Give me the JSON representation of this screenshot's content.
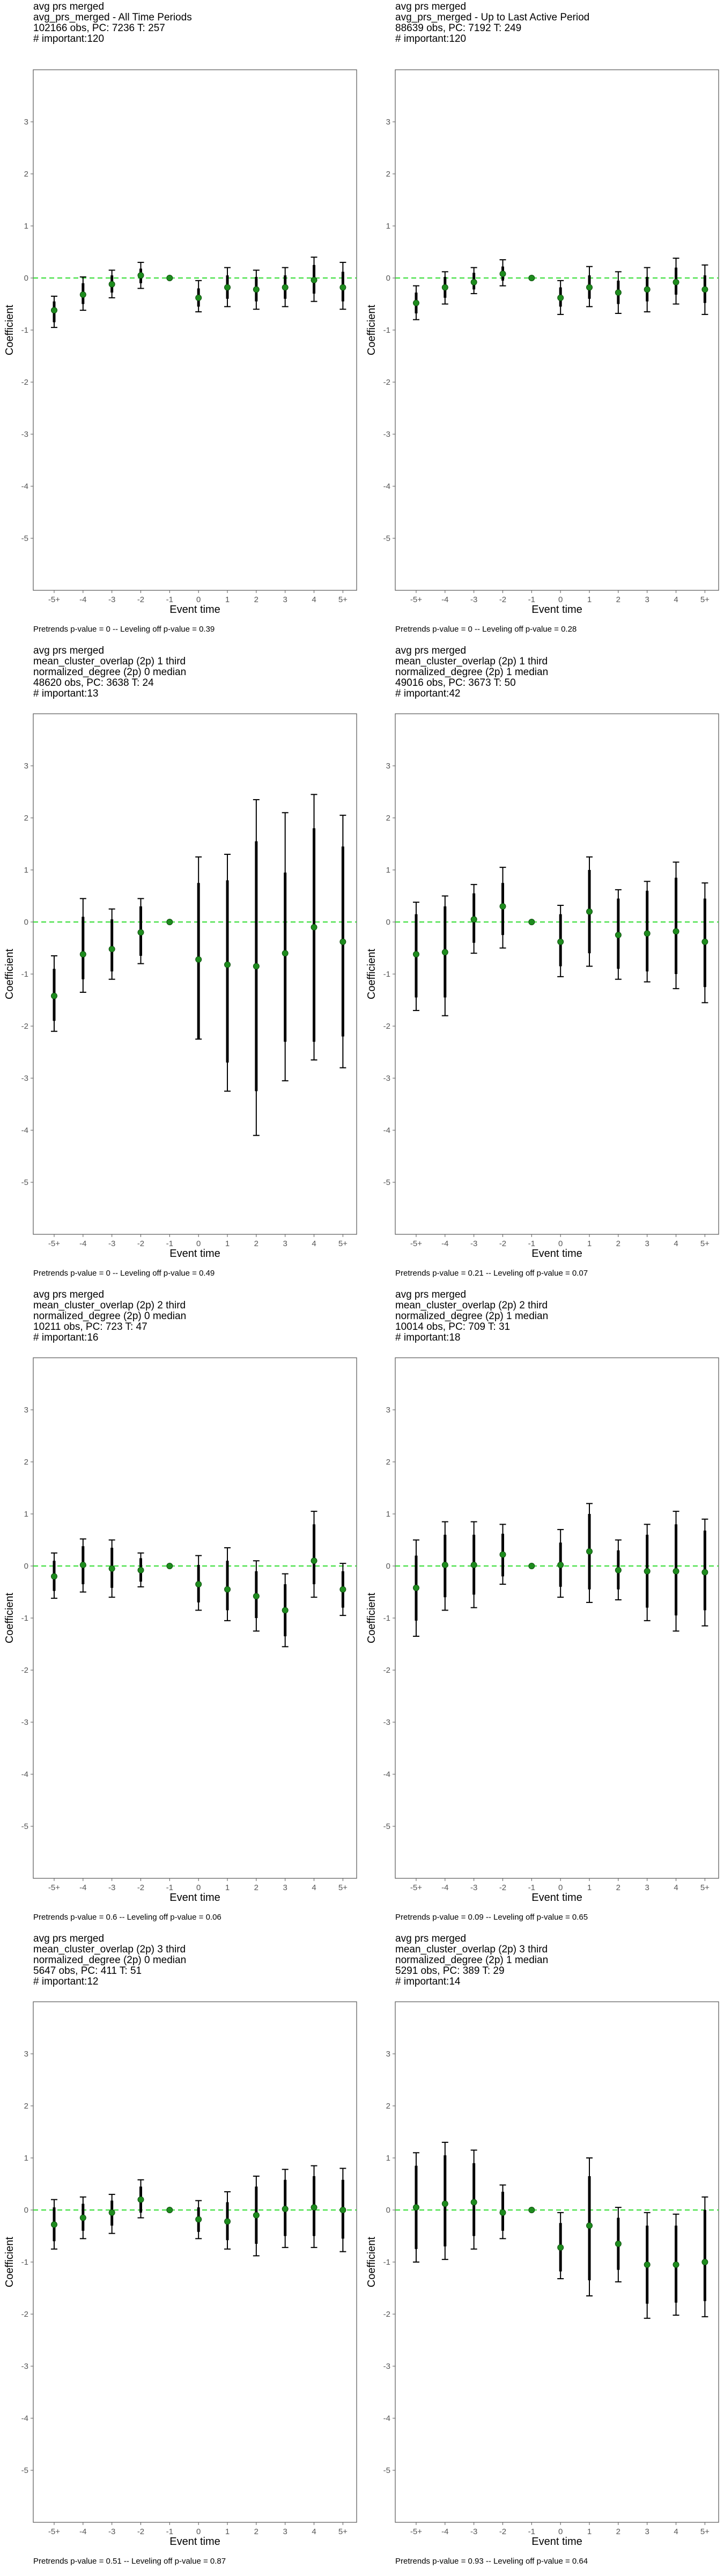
{
  "chart_data": [
    {
      "type": "errorbar",
      "title_lines": [
        "avg prs merged",
        "avg_prs_merged - All Time Periods",
        "102166 obs, PC: 7236 T: 257",
        "# important:120"
      ],
      "xlabel": "Event time",
      "ylabel": "Coefficient",
      "categories": [
        "-5+",
        "-4",
        "-3",
        "-2",
        "-1",
        "0",
        "1",
        "2",
        "3",
        "4",
        "5+"
      ],
      "ylim": [
        -6,
        4
      ],
      "yticks": [
        3,
        2,
        1,
        0,
        -1,
        -2,
        -3,
        -4,
        -5
      ],
      "estimate": [
        -0.62,
        -0.32,
        -0.12,
        0.05,
        0.0,
        -0.38,
        -0.18,
        -0.22,
        -0.18,
        -0.04,
        -0.18
      ],
      "ci_outer": [
        [
          -0.95,
          -0.35
        ],
        [
          -0.62,
          0.02
        ],
        [
          -0.38,
          0.15
        ],
        [
          -0.2,
          0.3
        ],
        [
          0.0,
          0.0
        ],
        [
          -0.65,
          -0.05
        ],
        [
          -0.55,
          0.2
        ],
        [
          -0.6,
          0.15
        ],
        [
          -0.55,
          0.2
        ],
        [
          -0.45,
          0.4
        ],
        [
          -0.6,
          0.3
        ]
      ],
      "ci_inner": [
        [
          -0.85,
          -0.45
        ],
        [
          -0.5,
          -0.1
        ],
        [
          -0.28,
          0.05
        ],
        [
          -0.1,
          0.18
        ],
        [
          0.0,
          0.0
        ],
        [
          -0.55,
          -0.2
        ],
        [
          -0.4,
          0.05
        ],
        [
          -0.45,
          0.02
        ],
        [
          -0.4,
          0.05
        ],
        [
          -0.3,
          0.25
        ],
        [
          -0.45,
          0.12
        ]
      ],
      "footer": "Pretrends p-value = 0 -- Leveling off p-value = 0.39"
    },
    {
      "type": "errorbar",
      "title_lines": [
        "avg prs merged",
        "avg_prs_merged - Up to Last Active Period",
        "88639 obs, PC: 7192 T: 249",
        "# important:120"
      ],
      "xlabel": "Event time",
      "ylabel": "Coefficient",
      "categories": [
        "-5+",
        "-4",
        "-3",
        "-2",
        "-1",
        "0",
        "1",
        "2",
        "3",
        "4",
        "5+"
      ],
      "ylim": [
        -6,
        4
      ],
      "yticks": [
        3,
        2,
        1,
        0,
        -1,
        -2,
        -3,
        -4,
        -5
      ],
      "estimate": [
        -0.48,
        -0.18,
        -0.08,
        0.08,
        0.0,
        -0.38,
        -0.18,
        -0.28,
        -0.22,
        -0.08,
        -0.22
      ],
      "ci_outer": [
        [
          -0.8,
          -0.15
        ],
        [
          -0.5,
          0.12
        ],
        [
          -0.3,
          0.2
        ],
        [
          -0.15,
          0.35
        ],
        [
          0.0,
          0.0
        ],
        [
          -0.7,
          -0.05
        ],
        [
          -0.55,
          0.22
        ],
        [
          -0.68,
          0.12
        ],
        [
          -0.65,
          0.2
        ],
        [
          -0.5,
          0.38
        ],
        [
          -0.7,
          0.25
        ]
      ],
      "ci_inner": [
        [
          -0.68,
          -0.28
        ],
        [
          -0.38,
          0.02
        ],
        [
          -0.22,
          0.1
        ],
        [
          -0.05,
          0.22
        ],
        [
          0.0,
          0.0
        ],
        [
          -0.55,
          -0.18
        ],
        [
          -0.4,
          0.05
        ],
        [
          -0.5,
          -0.05
        ],
        [
          -0.45,
          0.02
        ],
        [
          -0.32,
          0.2
        ],
        [
          -0.48,
          0.05
        ]
      ],
      "footer": "Pretrends p-value = 0 -- Leveling off p-value = 0.28"
    },
    {
      "type": "errorbar",
      "title_lines": [
        "avg prs merged",
        "mean_cluster_overlap (2p) 1 third",
        "normalized_degree (2p) 0 median",
        "48620 obs, PC: 3638 T: 24",
        "# important:13"
      ],
      "xlabel": "Event time",
      "ylabel": "Coefficient",
      "categories": [
        "-5+",
        "-4",
        "-3",
        "-2",
        "-1",
        "0",
        "1",
        "2",
        "3",
        "4",
        "5+"
      ],
      "ylim": [
        -6,
        4
      ],
      "yticks": [
        3,
        2,
        1,
        0,
        -1,
        -2,
        -3,
        -4,
        -5
      ],
      "estimate": [
        -1.42,
        -0.62,
        -0.52,
        -0.2,
        0.0,
        -0.72,
        -0.82,
        -0.85,
        -0.6,
        -0.1,
        -0.38
      ],
      "ci_outer": [
        [
          -2.1,
          -0.65
        ],
        [
          -1.35,
          0.45
        ],
        [
          -1.1,
          0.25
        ],
        [
          -0.8,
          0.45
        ],
        [
          0.0,
          0.0
        ],
        [
          -2.25,
          1.25
        ],
        [
          -3.25,
          1.3
        ],
        [
          -4.1,
          2.35
        ],
        [
          -3.05,
          2.1
        ],
        [
          -2.65,
          2.45
        ],
        [
          -2.8,
          2.05
        ]
      ],
      "ci_inner": [
        [
          -1.9,
          -0.9
        ],
        [
          -1.1,
          0.1
        ],
        [
          -0.95,
          0.05
        ],
        [
          -0.65,
          0.3
        ],
        [
          0.0,
          0.0
        ],
        [
          -2.25,
          0.75
        ],
        [
          -2.7,
          0.8
        ],
        [
          -3.25,
          1.55
        ],
        [
          -2.3,
          0.95
        ],
        [
          -2.3,
          1.8
        ],
        [
          -2.2,
          1.45
        ]
      ],
      "footer": "Pretrends p-value = 0 -- Leveling off p-value = 0.49"
    },
    {
      "type": "errorbar",
      "title_lines": [
        "avg prs merged",
        "mean_cluster_overlap (2p) 1 third",
        "normalized_degree (2p) 1 median",
        "49016 obs, PC: 3673 T: 50",
        "# important:42"
      ],
      "xlabel": "Event time",
      "ylabel": "Coefficient",
      "categories": [
        "-5+",
        "-4",
        "-3",
        "-2",
        "-1",
        "0",
        "1",
        "2",
        "3",
        "4",
        "5+"
      ],
      "ylim": [
        -6,
        4
      ],
      "yticks": [
        3,
        2,
        1,
        0,
        -1,
        -2,
        -3,
        -4,
        -5
      ],
      "estimate": [
        -0.62,
        -0.58,
        0.05,
        0.3,
        0.0,
        -0.38,
        0.2,
        -0.25,
        -0.22,
        -0.18,
        -0.38
      ],
      "ci_outer": [
        [
          -1.7,
          0.38
        ],
        [
          -1.8,
          0.5
        ],
        [
          -0.6,
          0.72
        ],
        [
          -0.5,
          1.05
        ],
        [
          0.0,
          0.0
        ],
        [
          -1.05,
          0.32
        ],
        [
          -0.85,
          1.25
        ],
        [
          -1.1,
          0.62
        ],
        [
          -1.15,
          0.78
        ],
        [
          -1.28,
          1.15
        ],
        [
          -1.55,
          0.75
        ]
      ],
      "ci_inner": [
        [
          -1.45,
          0.15
        ],
        [
          -1.45,
          0.3
        ],
        [
          -0.4,
          0.55
        ],
        [
          -0.25,
          0.75
        ],
        [
          0.0,
          0.0
        ],
        [
          -0.85,
          0.15
        ],
        [
          -0.6,
          1.0
        ],
        [
          -0.9,
          0.45
        ],
        [
          -0.95,
          0.6
        ],
        [
          -1.0,
          0.85
        ],
        [
          -1.25,
          0.45
        ]
      ],
      "footer": "Pretrends p-value = 0.21 -- Leveling off p-value = 0.07"
    },
    {
      "type": "errorbar",
      "title_lines": [
        "avg prs merged",
        "mean_cluster_overlap (2p) 2 third",
        "normalized_degree (2p) 0 median",
        "10211 obs, PC: 723 T: 47",
        "# important:16"
      ],
      "xlabel": "Event time",
      "ylabel": "Coefficient",
      "categories": [
        "-5+",
        "-4",
        "-3",
        "-2",
        "-1",
        "0",
        "1",
        "2",
        "3",
        "4",
        "5+"
      ],
      "ylim": [
        -6,
        4
      ],
      "yticks": [
        3,
        2,
        1,
        0,
        -1,
        -2,
        -3,
        -4,
        -5
      ],
      "estimate": [
        -0.2,
        0.02,
        -0.05,
        -0.08,
        0.0,
        -0.35,
        -0.45,
        -0.58,
        -0.85,
        0.1,
        -0.45
      ],
      "ci_outer": [
        [
          -0.62,
          0.25
        ],
        [
          -0.5,
          0.52
        ],
        [
          -0.6,
          0.5
        ],
        [
          -0.4,
          0.25
        ],
        [
          0.0,
          0.0
        ],
        [
          -0.85,
          0.2
        ],
        [
          -1.05,
          0.35
        ],
        [
          -1.25,
          0.1
        ],
        [
          -1.55,
          -0.15
        ],
        [
          -0.6,
          1.05
        ],
        [
          -0.95,
          0.05
        ]
      ],
      "ci_inner": [
        [
          -0.48,
          0.1
        ],
        [
          -0.35,
          0.38
        ],
        [
          -0.42,
          0.35
        ],
        [
          -0.3,
          0.15
        ],
        [
          0.0,
          0.0
        ],
        [
          -0.7,
          0.02
        ],
        [
          -0.85,
          0.1
        ],
        [
          -1.0,
          -0.1
        ],
        [
          -1.35,
          -0.35
        ],
        [
          -0.35,
          0.8
        ],
        [
          -0.8,
          -0.1
        ]
      ],
      "footer": "Pretrends p-value = 0.6 -- Leveling off p-value = 0.06"
    },
    {
      "type": "errorbar",
      "title_lines": [
        "avg prs merged",
        "mean_cluster_overlap (2p) 2 third",
        "normalized_degree (2p) 1 median",
        "10014 obs, PC: 709 T: 31",
        "# important:18"
      ],
      "xlabel": "Event time",
      "ylabel": "Coefficient",
      "categories": [
        "-5+",
        "-4",
        "-3",
        "-2",
        "-1",
        "0",
        "1",
        "2",
        "3",
        "4",
        "5+"
      ],
      "ylim": [
        -6,
        4
      ],
      "yticks": [
        3,
        2,
        1,
        0,
        -1,
        -2,
        -3,
        -4,
        -5
      ],
      "estimate": [
        -0.42,
        0.02,
        0.02,
        0.22,
        0.0,
        0.02,
        0.28,
        -0.08,
        -0.1,
        -0.1,
        -0.12
      ],
      "ci_outer": [
        [
          -1.35,
          0.5
        ],
        [
          -0.85,
          0.85
        ],
        [
          -0.8,
          0.85
        ],
        [
          -0.35,
          0.8
        ],
        [
          0.0,
          0.0
        ],
        [
          -0.6,
          0.7
        ],
        [
          -0.7,
          1.2
        ],
        [
          -0.65,
          0.5
        ],
        [
          -1.05,
          0.8
        ],
        [
          -1.25,
          1.05
        ],
        [
          -1.15,
          0.9
        ]
      ],
      "ci_inner": [
        [
          -1.05,
          0.2
        ],
        [
          -0.6,
          0.6
        ],
        [
          -0.55,
          0.6
        ],
        [
          -0.2,
          0.62
        ],
        [
          0.0,
          0.0
        ],
        [
          -0.4,
          0.45
        ],
        [
          -0.45,
          1.0
        ],
        [
          -0.45,
          0.3
        ],
        [
          -0.8,
          0.6
        ],
        [
          -0.95,
          0.8
        ],
        [
          -0.85,
          0.68
        ]
      ],
      "footer": "Pretrends p-value = 0.09 -- Leveling off p-value = 0.65"
    },
    {
      "type": "errorbar",
      "title_lines": [
        "avg prs merged",
        "mean_cluster_overlap (2p) 3 third",
        "normalized_degree (2p) 0 median",
        "5647 obs, PC: 411 T: 51",
        "# important:12"
      ],
      "xlabel": "Event time",
      "ylabel": "Coefficient",
      "categories": [
        "-5+",
        "-4",
        "-3",
        "-2",
        "-1",
        "0",
        "1",
        "2",
        "3",
        "4",
        "5+"
      ],
      "ylim": [
        -6,
        4
      ],
      "yticks": [
        3,
        2,
        1,
        0,
        -1,
        -2,
        -3,
        -4,
        -5
      ],
      "estimate": [
        -0.28,
        -0.15,
        -0.05,
        0.2,
        0.0,
        -0.18,
        -0.22,
        -0.1,
        0.02,
        0.05,
        0.0
      ],
      "ci_outer": [
        [
          -0.75,
          0.2
        ],
        [
          -0.55,
          0.25
        ],
        [
          -0.45,
          0.3
        ],
        [
          -0.15,
          0.58
        ],
        [
          0.0,
          0.0
        ],
        [
          -0.55,
          0.18
        ],
        [
          -0.75,
          0.35
        ],
        [
          -0.88,
          0.65
        ],
        [
          -0.72,
          0.78
        ],
        [
          -0.72,
          0.85
        ],
        [
          -0.8,
          0.8
        ]
      ],
      "ci_inner": [
        [
          -0.6,
          0.05
        ],
        [
          -0.4,
          0.12
        ],
        [
          -0.3,
          0.18
        ],
        [
          -0.05,
          0.45
        ],
        [
          0.0,
          0.0
        ],
        [
          -0.42,
          0.05
        ],
        [
          -0.58,
          0.15
        ],
        [
          -0.65,
          0.45
        ],
        [
          -0.5,
          0.58
        ],
        [
          -0.5,
          0.65
        ],
        [
          -0.55,
          0.58
        ]
      ],
      "footer": "Pretrends p-value = 0.51 -- Leveling off p-value = 0.87"
    },
    {
      "type": "errorbar",
      "title_lines": [
        "avg prs merged",
        "mean_cluster_overlap (2p) 3 third",
        "normalized_degree (2p) 1 median",
        "5291 obs, PC: 389 T: 29",
        "# important:14"
      ],
      "xlabel": "Event time",
      "ylabel": "Coefficient",
      "categories": [
        "-5+",
        "-4",
        "-3",
        "-2",
        "-1",
        "0",
        "1",
        "2",
        "3",
        "4",
        "5+"
      ],
      "ylim": [
        -6,
        4
      ],
      "yticks": [
        3,
        2,
        1,
        0,
        -1,
        -2,
        -3,
        -4,
        -5
      ],
      "estimate": [
        0.05,
        0.12,
        0.15,
        -0.05,
        0.0,
        -0.72,
        -0.3,
        -0.65,
        -1.05,
        -1.05,
        -1.0
      ],
      "ci_outer": [
        [
          -1.0,
          1.1
        ],
        [
          -0.95,
          1.3
        ],
        [
          -0.75,
          1.15
        ],
        [
          -0.55,
          0.48
        ],
        [
          0.0,
          0.0
        ],
        [
          -1.32,
          -0.05
        ],
        [
          -1.65,
          1.0
        ],
        [
          -1.38,
          0.05
        ],
        [
          -2.08,
          -0.05
        ],
        [
          -2.02,
          -0.08
        ],
        [
          -2.05,
          0.25
        ]
      ],
      "ci_inner": [
        [
          -0.75,
          0.85
        ],
        [
          -0.7,
          1.05
        ],
        [
          -0.5,
          0.9
        ],
        [
          -0.4,
          0.35
        ],
        [
          0.0,
          0.0
        ],
        [
          -1.18,
          -0.25
        ],
        [
          -1.35,
          0.65
        ],
        [
          -1.15,
          -0.15
        ],
        [
          -1.8,
          -0.3
        ],
        [
          -1.78,
          -0.3
        ],
        [
          -1.75,
          0.0
        ]
      ],
      "footer": "Pretrends p-value = 0.93 -- Leveling off p-value = 0.64"
    }
  ],
  "colors": {
    "zero_line": "#33dd33",
    "point": "#1e8c1e",
    "errorbar": "#000000",
    "panel_border": "#555555",
    "tick_text": "#555555"
  }
}
